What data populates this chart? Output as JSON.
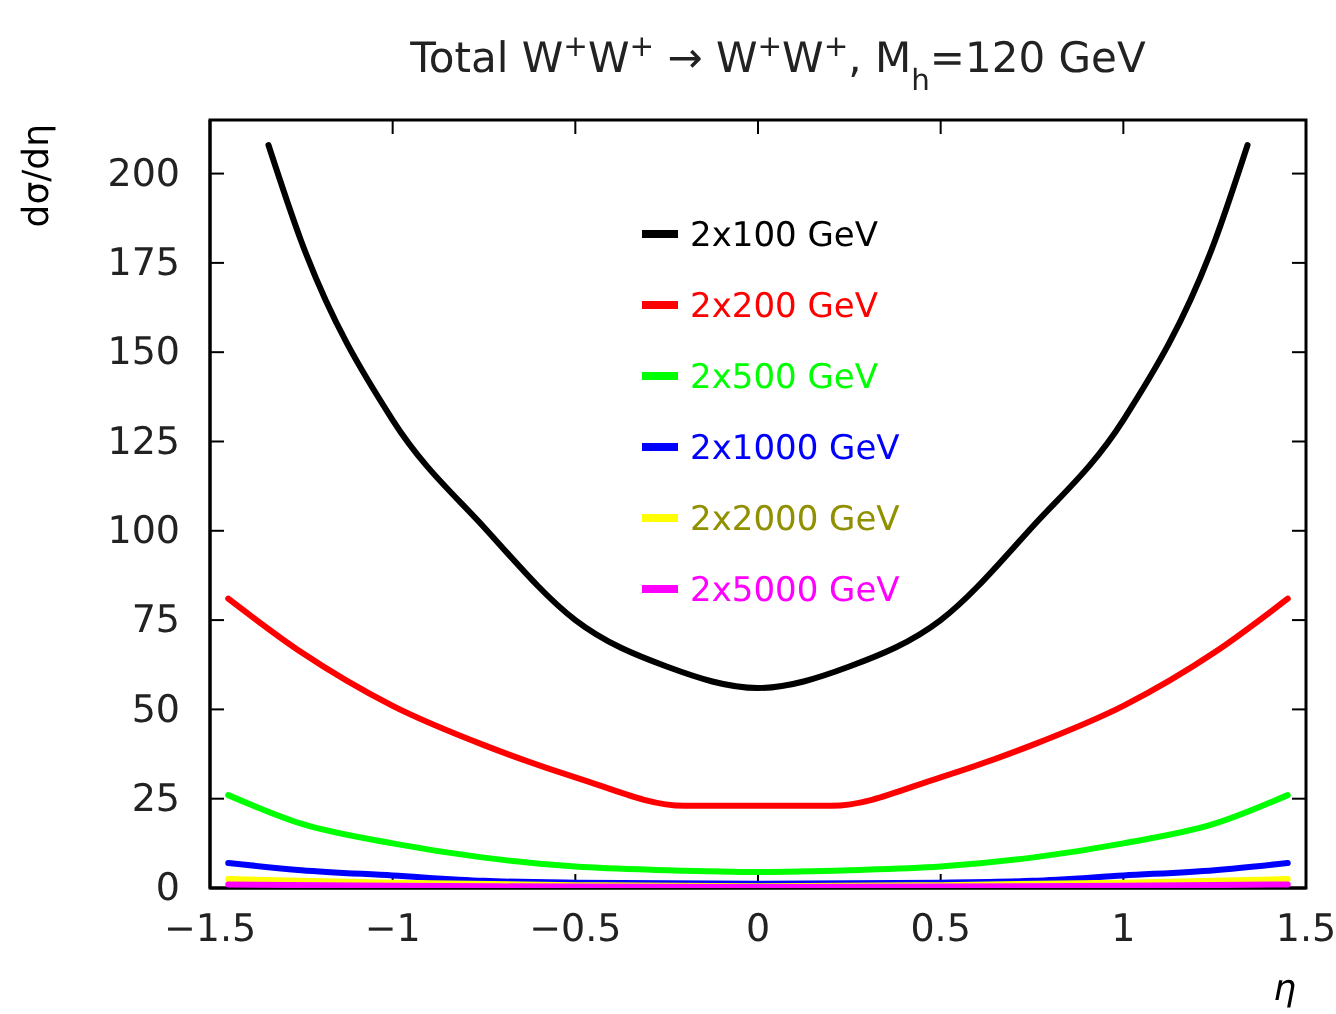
{
  "chart_data": {
    "type": "line",
    "title": "Total W$^{+}$W$^{+}$ → W$^{+}$W$^{+}$, M$_{h}$=120 GeV",
    "xlabel": "η",
    "ylabel": "dσ/dη",
    "xlim": [
      -1.5,
      1.5
    ],
    "ylim": [
      0,
      215
    ],
    "xticks": [
      -1.5,
      -1,
      -0.5,
      0,
      0.5,
      1,
      1.5
    ],
    "yticks": [
      0,
      25,
      50,
      75,
      100,
      125,
      150,
      175,
      200
    ],
    "grid": false,
    "legend": "top",
    "marker": "none",
    "line_style": "solid",
    "series": [
      {
        "name": "2x100 GeV",
        "color": "#000000",
        "x": [
          -1.34,
          -1.25,
          -1,
          -0.75,
          -0.5,
          -0.25,
          0,
          0.25,
          0.5,
          0.75,
          1,
          1.25,
          1.34
        ],
        "values": [
          208,
          181,
          131,
          101,
          75,
          62,
          56,
          62,
          75,
          101,
          131,
          181,
          208
        ]
      },
      {
        "name": "2x200 GeV",
        "color": "#ff0000",
        "x": [
          -1.45,
          -1.25,
          -1,
          -0.75,
          -0.5,
          -0.2,
          0,
          0.2,
          0.5,
          0.75,
          1,
          1.25,
          1.45
        ],
        "values": [
          81,
          66,
          51,
          40,
          31,
          23,
          23,
          23,
          31,
          40,
          51,
          66,
          81
        ]
      },
      {
        "name": "2x500 GeV",
        "color": "#00ff00",
        "x": [
          -1.45,
          -1.25,
          -1,
          -0.75,
          -0.5,
          -0.25,
          0,
          0.25,
          0.5,
          0.75,
          1,
          1.25,
          1.45
        ],
        "values": [
          26,
          18,
          12.5,
          8.5,
          6,
          5,
          4.5,
          5,
          6,
          8.5,
          12.5,
          18,
          26
        ]
      },
      {
        "name": "2x1000 GeV",
        "color": "#0000ff",
        "x": [
          -1.45,
          -1.25,
          -1,
          -0.75,
          -0.5,
          0,
          0.5,
          0.75,
          1,
          1.25,
          1.45
        ],
        "values": [
          7,
          5,
          3.5,
          2,
          1.5,
          1.2,
          1.5,
          2,
          3.5,
          5,
          7
        ]
      },
      {
        "name": "2x2000 GeV",
        "color": "#ffff00",
        "x": [
          -1.45,
          -1,
          -0.5,
          0,
          0.5,
          1,
          1.45
        ],
        "values": [
          2.5,
          1.5,
          0.8,
          0.5,
          0.8,
          1.5,
          2.5
        ]
      },
      {
        "name": "2x5000 GeV",
        "color": "#ff00ff",
        "x": [
          -1.45,
          -1,
          -0.5,
          0,
          0.5,
          1,
          1.45
        ],
        "values": [
          1,
          0.6,
          0.4,
          0.3,
          0.4,
          0.6,
          1
        ]
      }
    ]
  }
}
